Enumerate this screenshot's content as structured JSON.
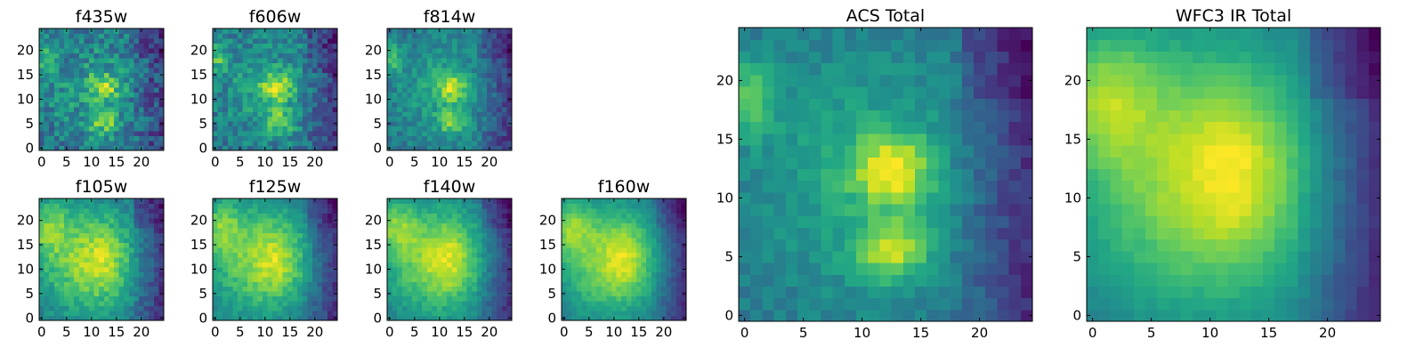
{
  "chart_data": [
    {
      "type": "heatmap",
      "title": "f435w",
      "xlim": [
        0,
        24
      ],
      "ylim": [
        0,
        24
      ],
      "xticks": [
        "0",
        "5",
        "10",
        "15",
        "20"
      ],
      "yticks": [
        "0",
        "5",
        "10",
        "15",
        "20"
      ],
      "colormap": "viridis"
    },
    {
      "type": "heatmap",
      "title": "f606w",
      "xlim": [
        0,
        24
      ],
      "ylim": [
        0,
        24
      ],
      "xticks": [
        "0",
        "5",
        "10",
        "15",
        "20"
      ],
      "yticks": [
        "0",
        "5",
        "10",
        "15",
        "20"
      ],
      "colormap": "viridis"
    },
    {
      "type": "heatmap",
      "title": "f814w",
      "xlim": [
        0,
        24
      ],
      "ylim": [
        0,
        24
      ],
      "xticks": [
        "0",
        "5",
        "10",
        "15",
        "20"
      ],
      "yticks": [
        "0",
        "5",
        "10",
        "15",
        "20"
      ],
      "colormap": "viridis"
    },
    {
      "type": "heatmap",
      "title": "f105w",
      "xlim": [
        0,
        24
      ],
      "ylim": [
        0,
        24
      ],
      "xticks": [
        "0",
        "5",
        "10",
        "15",
        "20"
      ],
      "yticks": [
        "0",
        "5",
        "10",
        "15",
        "20"
      ],
      "colormap": "viridis"
    },
    {
      "type": "heatmap",
      "title": "f125w",
      "xlim": [
        0,
        24
      ],
      "ylim": [
        0,
        24
      ],
      "xticks": [
        "0",
        "5",
        "10",
        "15",
        "20"
      ],
      "yticks": [
        "0",
        "5",
        "10",
        "15",
        "20"
      ],
      "colormap": "viridis"
    },
    {
      "type": "heatmap",
      "title": "f140w",
      "xlim": [
        0,
        24
      ],
      "ylim": [
        0,
        24
      ],
      "xticks": [
        "0",
        "5",
        "10",
        "15",
        "20"
      ],
      "yticks": [
        "0",
        "5",
        "10",
        "15",
        "20"
      ],
      "colormap": "viridis"
    },
    {
      "type": "heatmap",
      "title": "f160w",
      "xlim": [
        0,
        24
      ],
      "ylim": [
        0,
        24
      ],
      "xticks": [
        "0",
        "5",
        "10",
        "15",
        "20"
      ],
      "yticks": [
        "0",
        "5",
        "10",
        "15",
        "20"
      ],
      "colormap": "viridis"
    },
    {
      "type": "heatmap",
      "title": "ACS Total",
      "xlim": [
        0,
        24
      ],
      "ylim": [
        0,
        24
      ],
      "xticks": [
        "0",
        "5",
        "10",
        "15",
        "20"
      ],
      "yticks": [
        "0",
        "5",
        "10",
        "15",
        "20"
      ],
      "colormap": "viridis"
    },
    {
      "type": "heatmap",
      "title": "WFC3 IR Total",
      "xlim": [
        0,
        24
      ],
      "ylim": [
        0,
        24
      ],
      "xticks": [
        "0",
        "5",
        "10",
        "15",
        "20"
      ],
      "yticks": [
        "0",
        "5",
        "10",
        "15",
        "20"
      ],
      "colormap": "viridis"
    }
  ]
}
